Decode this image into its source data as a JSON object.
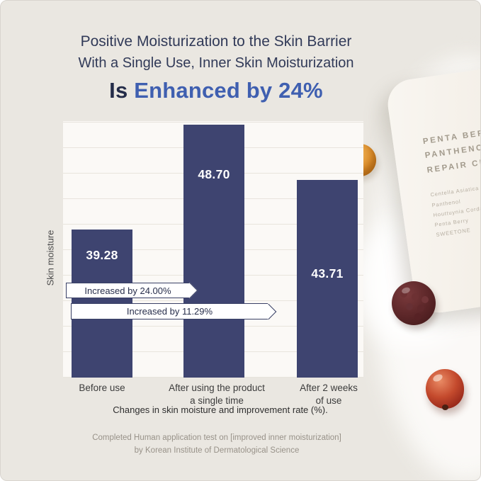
{
  "header": {
    "line1": "Positive Moisturization to the Skin Barrier",
    "line2": "With a Single Use, Inner Skin Moisturization",
    "line3_prefix": "Is ",
    "line3_highlight": "Enhanced by 24%"
  },
  "chart_data": {
    "type": "bar",
    "categories": [
      "Before use",
      "After using the product a single time",
      "After 2 weeks of use"
    ],
    "values": [
      39.28,
      48.7,
      43.71
    ],
    "value_labels": [
      "39.28",
      "48.70",
      "43.71"
    ],
    "ylabel": "Skin moisture",
    "xlabel": "",
    "ylim": [
      26,
      49
    ],
    "grid": "horizontal",
    "legend": "none",
    "bar_color": "#3e4470",
    "annotations": [
      {
        "label": "Increased by 24.00%"
      },
      {
        "label": "Increased by 11.29%"
      }
    ],
    "xlabels_display": [
      {
        "line1": "Before use",
        "line2": ""
      },
      {
        "line1": "After using the product",
        "line2": "a single time"
      },
      {
        "line1": "After 2 weeks",
        "line2": "of use"
      }
    ],
    "caption": "Changes in skin moisture and improvement rate (%)."
  },
  "product": {
    "name_lines": [
      "PENTA BERRY",
      "PANTHENOL",
      "REPAIR CREA"
    ],
    "ingredients": [
      "Centella Asiatica",
      "Panthenol",
      "Houttuynia Cordata",
      "Penta Berry",
      "SWEETONE"
    ]
  },
  "footer": {
    "line1": "Completed Human application test on [improved inner moisturization]",
    "line2": "by Korean Institute of Dermatological Science"
  },
  "colors": {
    "background": "#eae7e1",
    "bar": "#3e4470",
    "accent_blue": "#3f5fb0",
    "title_dark": "#242c49"
  }
}
